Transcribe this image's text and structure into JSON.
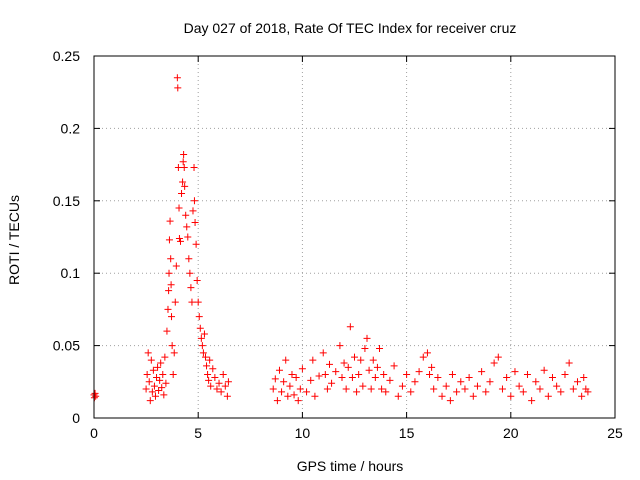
{
  "chart_data": {
    "type": "scatter",
    "title": "Day 027 of 2018, Rate Of TEC Index for receiver cruz",
    "xlabel": "GPS time / hours",
    "ylabel": "ROTI / TECUs",
    "xlim": [
      0,
      25
    ],
    "ylim": [
      0,
      0.25
    ],
    "xticks": [
      0,
      5,
      10,
      15,
      20,
      25
    ],
    "xtick_labels": [
      "0",
      "5",
      "10",
      "15",
      "20",
      "25"
    ],
    "yticks": [
      0,
      0.05,
      0.1,
      0.15,
      0.2,
      0.25
    ],
    "ytick_labels": [
      "0",
      "0.05",
      "0.1",
      "0.15",
      "0.2",
      "0.25"
    ],
    "grid": true,
    "marker": "+",
    "colors": {
      "series": "#ff0000",
      "grid": "#a0a0a0",
      "axis": "#000000"
    },
    "series": [
      {
        "name": "ROTI",
        "points": [
          [
            0.0,
            0.016
          ],
          [
            0.02,
            0.014
          ],
          [
            0.05,
            0.017
          ],
          [
            0.08,
            0.015
          ],
          [
            2.5,
            0.02
          ],
          [
            2.55,
            0.03
          ],
          [
            2.6,
            0.045
          ],
          [
            2.65,
            0.025
          ],
          [
            2.7,
            0.012
          ],
          [
            2.75,
            0.04
          ],
          [
            2.8,
            0.018
          ],
          [
            2.85,
            0.033
          ],
          [
            2.9,
            0.022
          ],
          [
            2.95,
            0.015
          ],
          [
            3.0,
            0.028
          ],
          [
            3.05,
            0.035
          ],
          [
            3.1,
            0.019
          ],
          [
            3.15,
            0.026
          ],
          [
            3.2,
            0.038
          ],
          [
            3.25,
            0.021
          ],
          [
            3.3,
            0.03
          ],
          [
            3.35,
            0.016
          ],
          [
            3.4,
            0.042
          ],
          [
            3.45,
            0.024
          ],
          [
            3.5,
            0.06
          ],
          [
            3.55,
            0.075
          ],
          [
            3.58,
            0.088
          ],
          [
            3.6,
            0.1
          ],
          [
            3.62,
            0.123
          ],
          [
            3.65,
            0.136
          ],
          [
            3.68,
            0.11
          ],
          [
            3.7,
            0.092
          ],
          [
            3.72,
            0.07
          ],
          [
            3.75,
            0.05
          ],
          [
            3.8,
            0.03
          ],
          [
            3.85,
            0.045
          ],
          [
            3.9,
            0.08
          ],
          [
            3.95,
            0.105
          ],
          [
            4.0,
            0.235
          ],
          [
            4.02,
            0.228
          ],
          [
            4.05,
            0.173
          ],
          [
            4.08,
            0.145
          ],
          [
            4.1,
            0.124
          ],
          [
            4.15,
            0.122
          ],
          [
            4.2,
            0.155
          ],
          [
            4.25,
            0.163
          ],
          [
            4.28,
            0.177
          ],
          [
            4.3,
            0.182
          ],
          [
            4.33,
            0.173
          ],
          [
            4.35,
            0.16
          ],
          [
            4.4,
            0.14
          ],
          [
            4.45,
            0.132
          ],
          [
            4.5,
            0.125
          ],
          [
            4.55,
            0.11
          ],
          [
            4.6,
            0.1
          ],
          [
            4.65,
            0.09
          ],
          [
            4.7,
            0.08
          ],
          [
            4.75,
            0.143
          ],
          [
            4.8,
            0.173
          ],
          [
            4.82,
            0.15
          ],
          [
            4.85,
            0.135
          ],
          [
            4.9,
            0.12
          ],
          [
            4.95,
            0.095
          ],
          [
            5.0,
            0.08
          ],
          [
            5.05,
            0.07
          ],
          [
            5.1,
            0.062
          ],
          [
            5.15,
            0.055
          ],
          [
            5.2,
            0.05
          ],
          [
            5.25,
            0.045
          ],
          [
            5.3,
            0.058
          ],
          [
            5.35,
            0.042
          ],
          [
            5.4,
            0.036
          ],
          [
            5.45,
            0.03
          ],
          [
            5.5,
            0.026
          ],
          [
            5.55,
            0.04
          ],
          [
            5.6,
            0.022
          ],
          [
            5.7,
            0.034
          ],
          [
            5.8,
            0.028
          ],
          [
            5.9,
            0.02
          ],
          [
            6.0,
            0.024
          ],
          [
            6.1,
            0.018
          ],
          [
            6.2,
            0.03
          ],
          [
            6.3,
            0.022
          ],
          [
            6.4,
            0.015
          ],
          [
            6.45,
            0.025
          ],
          [
            8.6,
            0.02
          ],
          [
            8.7,
            0.027
          ],
          [
            8.8,
            0.012
          ],
          [
            8.9,
            0.033
          ],
          [
            9.0,
            0.018
          ],
          [
            9.1,
            0.025
          ],
          [
            9.2,
            0.04
          ],
          [
            9.3,
            0.015
          ],
          [
            9.4,
            0.022
          ],
          [
            9.5,
            0.03
          ],
          [
            9.6,
            0.016
          ],
          [
            9.7,
            0.028
          ],
          [
            9.8,
            0.012
          ],
          [
            9.9,
            0.02
          ],
          [
            10.0,
            0.034
          ],
          [
            10.2,
            0.018
          ],
          [
            10.4,
            0.026
          ],
          [
            10.5,
            0.04
          ],
          [
            10.6,
            0.015
          ],
          [
            10.8,
            0.029
          ],
          [
            11.0,
            0.045
          ],
          [
            11.1,
            0.03
          ],
          [
            11.2,
            0.02
          ],
          [
            11.3,
            0.037
          ],
          [
            11.4,
            0.024
          ],
          [
            11.6,
            0.032
          ],
          [
            11.8,
            0.05
          ],
          [
            11.9,
            0.028
          ],
          [
            12.0,
            0.038
          ],
          [
            12.1,
            0.02
          ],
          [
            12.2,
            0.035
          ],
          [
            12.3,
            0.063
          ],
          [
            12.4,
            0.028
          ],
          [
            12.5,
            0.042
          ],
          [
            12.6,
            0.018
          ],
          [
            12.7,
            0.03
          ],
          [
            12.8,
            0.04
          ],
          [
            12.9,
            0.022
          ],
          [
            13.0,
            0.048
          ],
          [
            13.1,
            0.055
          ],
          [
            13.2,
            0.033
          ],
          [
            13.3,
            0.02
          ],
          [
            13.4,
            0.04
          ],
          [
            13.5,
            0.028
          ],
          [
            13.6,
            0.035
          ],
          [
            13.7,
            0.048
          ],
          [
            13.8,
            0.02
          ],
          [
            13.9,
            0.03
          ],
          [
            14.0,
            0.018
          ],
          [
            14.2,
            0.026
          ],
          [
            14.4,
            0.036
          ],
          [
            14.6,
            0.015
          ],
          [
            14.8,
            0.022
          ],
          [
            15.0,
            0.03
          ],
          [
            15.2,
            0.018
          ],
          [
            15.4,
            0.025
          ],
          [
            15.6,
            0.032
          ],
          [
            15.8,
            0.042
          ],
          [
            16.0,
            0.045
          ],
          [
            16.1,
            0.03
          ],
          [
            16.2,
            0.035
          ],
          [
            16.3,
            0.02
          ],
          [
            16.5,
            0.028
          ],
          [
            16.7,
            0.015
          ],
          [
            16.9,
            0.022
          ],
          [
            17.1,
            0.012
          ],
          [
            17.2,
            0.03
          ],
          [
            17.4,
            0.018
          ],
          [
            17.6,
            0.025
          ],
          [
            17.8,
            0.02
          ],
          [
            18.0,
            0.028
          ],
          [
            18.2,
            0.015
          ],
          [
            18.4,
            0.022
          ],
          [
            18.6,
            0.032
          ],
          [
            18.8,
            0.018
          ],
          [
            19.0,
            0.025
          ],
          [
            19.2,
            0.038
          ],
          [
            19.4,
            0.042
          ],
          [
            19.6,
            0.02
          ],
          [
            19.8,
            0.028
          ],
          [
            20.0,
            0.015
          ],
          [
            20.2,
            0.032
          ],
          [
            20.4,
            0.022
          ],
          [
            20.6,
            0.018
          ],
          [
            20.8,
            0.03
          ],
          [
            21.0,
            0.012
          ],
          [
            21.2,
            0.025
          ],
          [
            21.4,
            0.02
          ],
          [
            21.6,
            0.033
          ],
          [
            21.8,
            0.015
          ],
          [
            22.0,
            0.028
          ],
          [
            22.2,
            0.022
          ],
          [
            22.4,
            0.018
          ],
          [
            22.6,
            0.03
          ],
          [
            22.8,
            0.038
          ],
          [
            23.0,
            0.02
          ],
          [
            23.2,
            0.025
          ],
          [
            23.4,
            0.015
          ],
          [
            23.5,
            0.028
          ],
          [
            23.6,
            0.02
          ],
          [
            23.7,
            0.018
          ]
        ]
      }
    ]
  }
}
